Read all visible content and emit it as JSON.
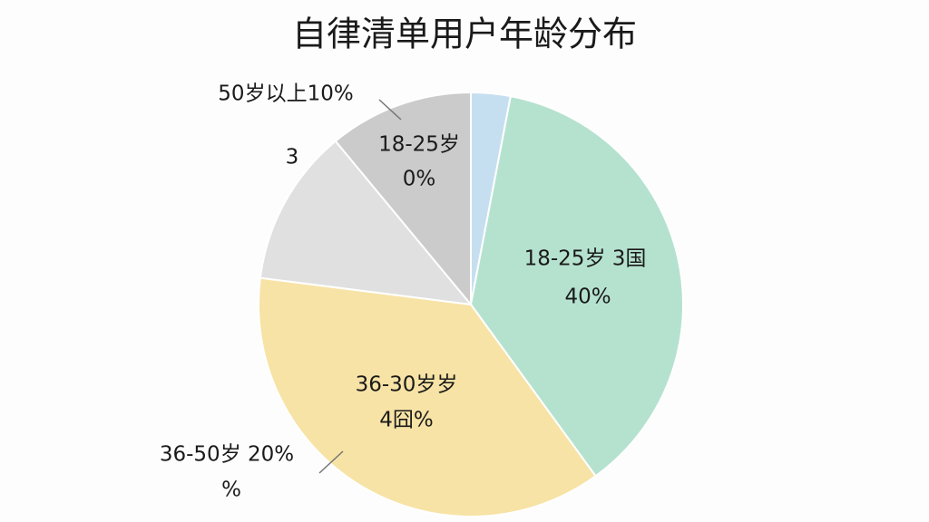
{
  "chart_data": {
    "type": "pie",
    "title": "自律清单用户年龄分布",
    "values": [
      3,
      37,
      37,
      12,
      11
    ],
    "colors": [
      "#c6dff0",
      "#b5e2cf",
      "#f7e3a5",
      "#e0e0e0",
      "#cbcbcb"
    ],
    "annotations": [
      "50岁以上10%",
      "18-25岁",
      "0%",
      "3",
      "18-25岁 3国",
      "40%",
      "36-30岁岁",
      "4囧%",
      "36-50岁 20%",
      "%"
    ]
  }
}
